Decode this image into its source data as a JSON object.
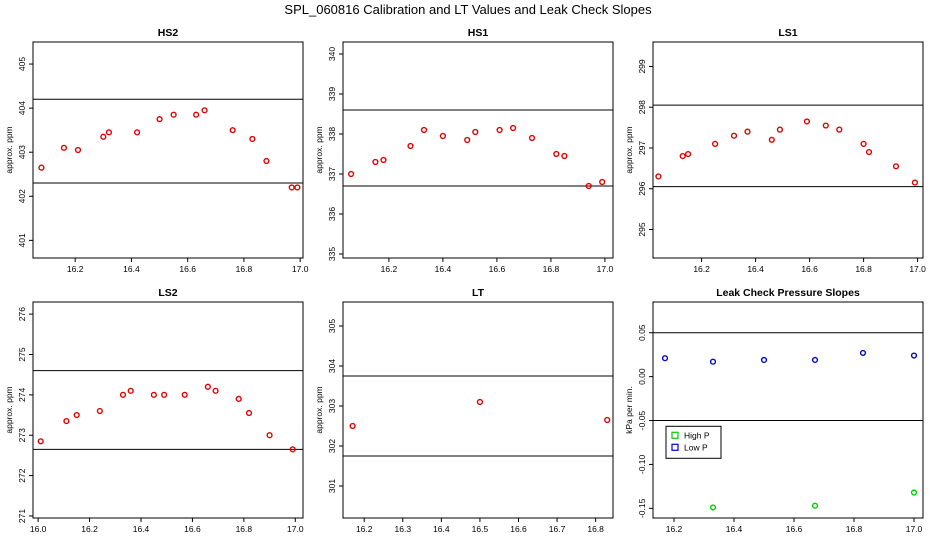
{
  "title": "SPL_060816  Calibration and LT Values and Leak Check Slopes",
  "chart_data": [
    {
      "type": "scatter",
      "title": "HS2",
      "ylabel": "approx. ppm",
      "xlim": [
        16.05,
        17.01
      ],
      "ylim": [
        400.6,
        405.5
      ],
      "xticks": [
        16.2,
        16.4,
        16.6,
        16.8,
        17.0
      ],
      "xtick_labels": [
        "16.2",
        "16.4",
        "16.6",
        "16.8",
        "17.0"
      ],
      "yticks": [
        401,
        402,
        403,
        404,
        405
      ],
      "ytick_labels": [
        "401",
        "402",
        "403",
        "404",
        "405"
      ],
      "hlines": [
        404.2,
        402.3
      ],
      "series": [
        {
          "color": "#dd0000",
          "marker": "circle",
          "x": [
            16.08,
            16.16,
            16.21,
            16.3,
            16.32,
            16.42,
            16.5,
            16.55,
            16.63,
            16.66,
            16.76,
            16.83,
            16.88,
            16.97,
            16.99
          ],
          "y": [
            402.65,
            403.1,
            403.05,
            403.35,
            403.45,
            403.45,
            403.75,
            403.85,
            403.85,
            403.95,
            403.5,
            403.3,
            402.8,
            402.2,
            402.2
          ]
        }
      ]
    },
    {
      "type": "scatter",
      "title": "HS1",
      "ylabel": "approx. ppm",
      "xlim": [
        16.03,
        17.03
      ],
      "ylim": [
        334.9,
        340.3
      ],
      "xticks": [
        16.2,
        16.4,
        16.6,
        16.8,
        17.0
      ],
      "xtick_labels": [
        "16.2",
        "16.4",
        "16.6",
        "16.8",
        "17.0"
      ],
      "yticks": [
        335,
        336,
        337,
        338,
        339,
        340
      ],
      "ytick_labels": [
        "335",
        "336",
        "337",
        "338",
        "339",
        "340"
      ],
      "hlines": [
        338.6,
        336.7
      ],
      "series": [
        {
          "color": "#dd0000",
          "marker": "circle",
          "x": [
            16.06,
            16.15,
            16.18,
            16.28,
            16.33,
            16.4,
            16.49,
            16.52,
            16.61,
            16.66,
            16.73,
            16.82,
            16.85,
            16.94,
            16.99
          ],
          "y": [
            337.0,
            337.3,
            337.35,
            337.7,
            338.1,
            337.95,
            337.85,
            338.05,
            338.1,
            338.15,
            337.9,
            337.5,
            337.45,
            336.7,
            336.8
          ]
        }
      ]
    },
    {
      "type": "scatter",
      "title": "LS1",
      "ylabel": "approx. ppm",
      "xlim": [
        16.02,
        17.02
      ],
      "ylim": [
        294.3,
        299.6
      ],
      "xticks": [
        16.2,
        16.4,
        16.6,
        16.8,
        17.0
      ],
      "xtick_labels": [
        "16.2",
        "16.4",
        "16.6",
        "16.8",
        "17.0"
      ],
      "yticks": [
        295,
        296,
        297,
        298,
        299
      ],
      "ytick_labels": [
        "295",
        "296",
        "297",
        "298",
        "299"
      ],
      "hlines": [
        298.05,
        296.05
      ],
      "series": [
        {
          "color": "#dd0000",
          "marker": "circle",
          "x": [
            16.04,
            16.13,
            16.15,
            16.25,
            16.32,
            16.37,
            16.46,
            16.49,
            16.59,
            16.66,
            16.71,
            16.8,
            16.82,
            16.92,
            16.99
          ],
          "y": [
            296.3,
            296.8,
            296.85,
            297.1,
            297.3,
            297.4,
            297.2,
            297.45,
            297.65,
            297.55,
            297.45,
            297.1,
            296.9,
            296.55,
            296.15
          ]
        }
      ]
    },
    {
      "type": "scatter",
      "title": "LS2",
      "ylabel": "approx. ppm",
      "xlim": [
        15.98,
        17.03
      ],
      "ylim": [
        270.95,
        276.3
      ],
      "xticks": [
        16.0,
        16.2,
        16.4,
        16.6,
        16.8,
        17.0
      ],
      "xtick_labels": [
        "16.0",
        "16.2",
        "16.4",
        "16.6",
        "16.8",
        "17.0"
      ],
      "yticks": [
        271,
        272,
        273,
        274,
        275,
        276
      ],
      "ytick_labels": [
        "271",
        "272",
        "273",
        "274",
        "275",
        "276"
      ],
      "hlines": [
        274.6,
        272.65
      ],
      "series": [
        {
          "color": "#dd0000",
          "marker": "circle",
          "x": [
            16.01,
            16.11,
            16.15,
            16.24,
            16.33,
            16.36,
            16.45,
            16.49,
            16.57,
            16.66,
            16.69,
            16.78,
            16.82,
            16.9,
            16.99
          ],
          "y": [
            272.85,
            273.35,
            273.5,
            273.6,
            274.0,
            274.1,
            274.0,
            274.0,
            274.0,
            274.2,
            274.1,
            273.9,
            273.55,
            273.0,
            272.65
          ]
        }
      ]
    },
    {
      "type": "scatter",
      "title": "LT",
      "ylabel": "approx. ppm",
      "xlim": [
        16.145,
        16.845
      ],
      "ylim": [
        300.2,
        305.6
      ],
      "xticks": [
        16.2,
        16.3,
        16.4,
        16.5,
        16.6,
        16.7,
        16.8
      ],
      "xtick_labels": [
        "16.2",
        "16.3",
        "16.4",
        "16.5",
        "16.6",
        "16.7",
        "16.8"
      ],
      "yticks": [
        301,
        302,
        303,
        304,
        305
      ],
      "ytick_labels": [
        "301",
        "302",
        "303",
        "304",
        "305"
      ],
      "hlines": [
        303.75,
        301.75
      ],
      "series": [
        {
          "color": "#dd0000",
          "marker": "circle",
          "x": [
            16.17,
            16.5,
            16.83
          ],
          "y": [
            302.5,
            303.1,
            302.65
          ]
        }
      ]
    },
    {
      "type": "scatter",
      "title": "Leak Check Pressure Slopes",
      "ylabel": "kPa per min.",
      "xlim": [
        16.13,
        17.03
      ],
      "ylim": [
        -0.161,
        0.085
      ],
      "xticks": [
        16.2,
        16.4,
        16.6,
        16.8,
        17.0
      ],
      "xtick_labels": [
        "16.2",
        "16.4",
        "16.6",
        "16.8",
        "17.0"
      ],
      "yticks": [
        -0.15,
        -0.1,
        -0.05,
        0.0,
        0.05
      ],
      "ytick_labels": [
        "-0.15",
        "-0.10",
        "-0.05",
        "0.00",
        "0.05"
      ],
      "hlines": [
        0.05,
        -0.05
      ],
      "legend": "bottom-left",
      "series": [
        {
          "name": "High P",
          "color": "#00cc00",
          "marker": "circle",
          "x": [
            16.33,
            16.67,
            17.0
          ],
          "y": [
            -0.149,
            -0.147,
            -0.132
          ]
        },
        {
          "name": "Low P",
          "color": "#0000cc",
          "marker": "circle",
          "x": [
            16.17,
            16.33,
            16.5,
            16.67,
            16.83,
            17.0
          ],
          "y": [
            0.021,
            0.017,
            0.019,
            0.019,
            0.027,
            0.024
          ]
        }
      ]
    }
  ]
}
